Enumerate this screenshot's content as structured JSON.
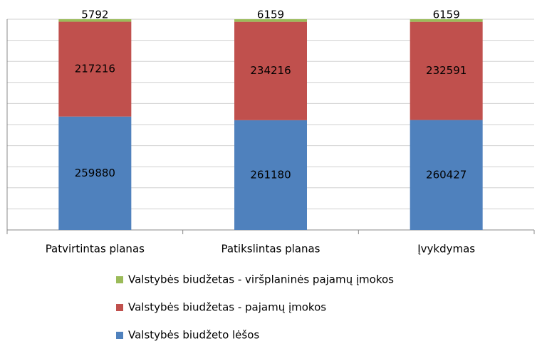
{
  "chart_data": {
    "type": "bar",
    "stacking": "percent",
    "categories": [
      "Patvirtintas planas",
      "Patikslintas planas",
      "Įvykdymas"
    ],
    "series": [
      {
        "name": "Valstybės biudžeto lėšos",
        "color": "#4f81bd",
        "values": [
          259880,
          261180,
          260427
        ]
      },
      {
        "name": "Valstybės biudžetas - pajamų įmokos",
        "color": "#c0504d",
        "values": [
          217216,
          234216,
          232591
        ]
      },
      {
        "name": "Valstybės biudžetas - viršplaninės pajamų įmokos",
        "color": "#9bbb59",
        "values": [
          5792,
          6159,
          6159
        ]
      }
    ],
    "ylim": [
      0,
      100
    ],
    "yticks": [
      0,
      10,
      20,
      30,
      40,
      50,
      60,
      70,
      80,
      90,
      100
    ],
    "grid": true,
    "tick_labels": false,
    "legend": "bottom"
  }
}
